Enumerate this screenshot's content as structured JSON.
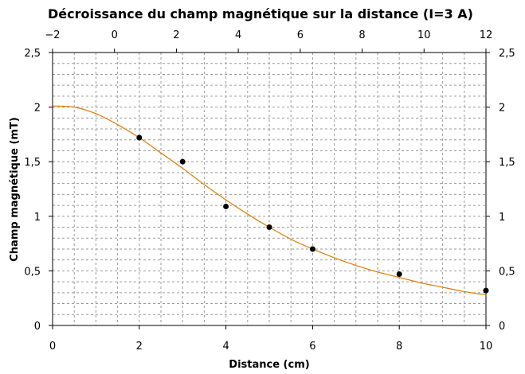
{
  "chart_data": {
    "type": "scatter",
    "title": "Décroissance du champ magnétique sur la distance (I=3 A)",
    "xlabel": "Distance (cm)",
    "ylabel": "Champ magnétique (mT)",
    "xlim": [
      0,
      10
    ],
    "ylim": [
      0,
      2.5
    ],
    "x_ticks": [
      "0",
      "2",
      "4",
      "6",
      "8",
      "10"
    ],
    "y_ticks": [
      "0",
      "0,5",
      "1",
      "1,5",
      "2",
      "2,5"
    ],
    "top_axis": {
      "xlim": [
        -2,
        12
      ],
      "ticks": [
        "−2",
        "0",
        "2",
        "4",
        "6",
        "8",
        "10",
        "12"
      ]
    },
    "right_axis": {
      "ticks": [
        "0",
        "0,5",
        "1",
        "1,5",
        "2",
        "2,5"
      ]
    },
    "grid": true,
    "series": [
      {
        "type": "scatter",
        "color": "#000000",
        "x": [
          2,
          3,
          4,
          5,
          6,
          8,
          10
        ],
        "y": [
          1.72,
          1.5,
          1.09,
          0.9,
          0.7,
          0.47,
          0.32
        ]
      },
      {
        "type": "line",
        "color": "#e07b00",
        "x": [
          0,
          0.5,
          1,
          1.5,
          2,
          2.5,
          3,
          3.5,
          4,
          4.5,
          5,
          5.5,
          6,
          6.5,
          7,
          7.5,
          8,
          8.5,
          9,
          9.5,
          10
        ],
        "y": [
          2.01,
          2.0,
          1.94,
          1.84,
          1.72,
          1.58,
          1.44,
          1.29,
          1.15,
          1.02,
          0.9,
          0.79,
          0.7,
          0.62,
          0.55,
          0.49,
          0.44,
          0.39,
          0.35,
          0.31,
          0.28
        ]
      }
    ]
  }
}
